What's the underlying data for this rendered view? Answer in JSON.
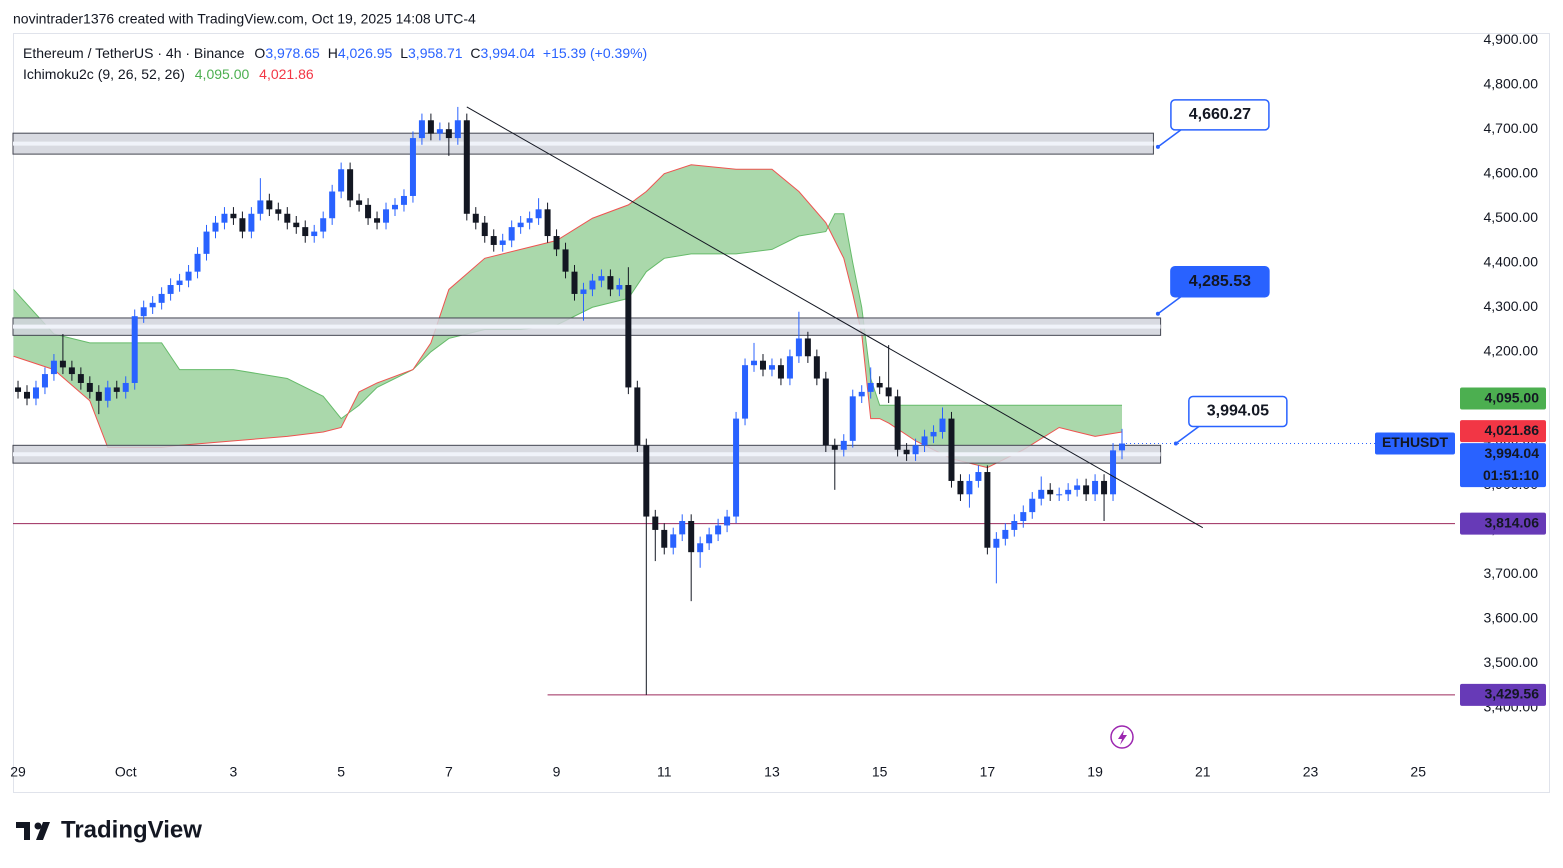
{
  "header": {
    "attribution": "novintrader1376 created with TradingView.com, Oct 19, 2025 14:08 UTC-4",
    "symbol": "Ethereum / TetherUS · 4h · Binance",
    "ohlc": [
      {
        "key": "O",
        "value": "3,978.65"
      },
      {
        "key": "H",
        "value": "4,026.95"
      },
      {
        "key": "L",
        "value": "3,958.71"
      },
      {
        "key": "C",
        "value": "3,994.04"
      }
    ],
    "change": "+15.39 (+0.39%)",
    "indicator": {
      "name": "Ichimoku2c (9, 26, 52, 26)",
      "values": [
        "4,095.00",
        "4,021.86"
      ]
    }
  },
  "footer": {
    "brand": "TradingView"
  },
  "chart_data": {
    "type": "candlestick",
    "up_color": "#2962ff",
    "down_color": "#131722",
    "grid": false,
    "xlim": [
      -0.56,
      160.1
    ],
    "xticks": [
      {
        "value": 0,
        "label": "29"
      },
      {
        "value": 12,
        "label": "Oct"
      },
      {
        "value": 24,
        "label": "3"
      },
      {
        "value": 36,
        "label": "5"
      },
      {
        "value": 48,
        "label": "7"
      },
      {
        "value": 60,
        "label": "9"
      },
      {
        "value": 72,
        "label": "11"
      },
      {
        "value": 84,
        "label": "13"
      },
      {
        "value": 96,
        "label": "15"
      },
      {
        "value": 108,
        "label": "17"
      },
      {
        "value": 120,
        "label": "19"
      },
      {
        "value": 132,
        "label": "21"
      },
      {
        "value": 144,
        "label": "23"
      },
      {
        "value": 156,
        "label": "25"
      }
    ],
    "ylim": [
      3290,
      4916
    ],
    "yticks": [
      {
        "value": 4900,
        "label": "4,900.00"
      },
      {
        "value": 4800,
        "label": "4,800.00"
      },
      {
        "value": 4700,
        "label": "4,700.00"
      },
      {
        "value": 4600,
        "label": "4,600.00"
      },
      {
        "value": 4500,
        "label": "4,500.00"
      },
      {
        "value": 4400,
        "label": "4,400.00"
      },
      {
        "value": 4300,
        "label": "4,300.00"
      },
      {
        "value": 4200,
        "label": "4,200.00"
      },
      {
        "value": 4100,
        "label": "4,100.00"
      },
      {
        "value": 4000,
        "label": "4,000.00"
      },
      {
        "value": 3900,
        "label": "3,900.00"
      },
      {
        "value": 3800,
        "label": "3,800.00"
      },
      {
        "value": 3700,
        "label": "3,700.00"
      },
      {
        "value": 3600,
        "label": "3,600.00"
      },
      {
        "value": 3500,
        "label": "3,500.00"
      },
      {
        "value": 3400,
        "label": "3,400.00"
      }
    ],
    "open": [
      4120,
      4110,
      4095,
      4120,
      4150,
      4180,
      4165,
      4150,
      4130,
      4110,
      4090,
      4120,
      4110,
      4130,
      4280,
      4300,
      4310,
      4330,
      4350,
      4360,
      4380,
      4420,
      4470,
      4490,
      4510,
      4500,
      4470,
      4510,
      4540,
      4520,
      4510,
      4490,
      4480,
      4460,
      4470,
      4500,
      4560,
      4610,
      4540,
      4530,
      4500,
      4490,
      4520,
      4530,
      4550,
      4680,
      4720,
      4690,
      4700,
      4680,
      4720,
      4510,
      4490,
      4460,
      4440,
      4450,
      4480,
      4490,
      4500,
      4520,
      4460,
      4430,
      4380,
      4330,
      4340,
      4360,
      4370,
      4340,
      4350,
      4120,
      3990,
      3830,
      3800,
      3760,
      3790,
      3820,
      3750,
      3770,
      3790,
      3810,
      3830,
      4050,
      4170,
      4180,
      4160,
      4170,
      4140,
      4190,
      4230,
      4190,
      4140,
      3990,
      3980,
      4000,
      4100,
      4110,
      4130,
      4120,
      4100,
      3980,
      3970,
      3990,
      4010,
      4020,
      4050,
      3910,
      3880,
      3910,
      3930,
      3760,
      3780,
      3800,
      3820,
      3840,
      3870,
      3890,
      3880,
      3880,
      3890,
      3900,
      3880,
      3910,
      3880,
      3978.65
    ],
    "high": [
      4135,
      4125,
      4135,
      4165,
      4195,
      4240,
      4180,
      4165,
      4145,
      4125,
      4135,
      4135,
      4145,
      4295,
      4315,
      4325,
      4345,
      4365,
      4375,
      4395,
      4435,
      4485,
      4505,
      4525,
      4525,
      4515,
      4525,
      4590,
      4555,
      4535,
      4525,
      4505,
      4495,
      4485,
      4515,
      4575,
      4625,
      4625,
      4555,
      4545,
      4515,
      4535,
      4545,
      4565,
      4695,
      4735,
      4735,
      4715,
      4715,
      4750,
      4735,
      4525,
      4505,
      4475,
      4465,
      4495,
      4505,
      4515,
      4545,
      4535,
      4475,
      4445,
      4395,
      4355,
      4375,
      4385,
      4385,
      4365,
      4390,
      4135,
      4005,
      3845,
      3815,
      3805,
      3835,
      3835,
      3785,
      3805,
      3825,
      3845,
      4065,
      4185,
      4220,
      4195,
      4185,
      4185,
      4205,
      4290,
      4245,
      4205,
      4155,
      4005,
      4015,
      4115,
      4125,
      4165,
      4145,
      4215,
      4115,
      3995,
      4005,
      4025,
      4035,
      4075,
      4065,
      3925,
      3925,
      3945,
      3945,
      3795,
      3815,
      3835,
      3855,
      3885,
      3920,
      3905,
      3895,
      3905,
      3915,
      3915,
      3925,
      3925,
      3995,
      4026.95
    ],
    "low": [
      4095,
      4080,
      4080,
      4105,
      4135,
      4150,
      4135,
      4115,
      4095,
      4060,
      4075,
      4095,
      4095,
      4115,
      4265,
      4285,
      4295,
      4315,
      4335,
      4345,
      4365,
      4405,
      4455,
      4475,
      4485,
      4455,
      4455,
      4495,
      4505,
      4495,
      4475,
      4465,
      4445,
      4445,
      4455,
      4485,
      4545,
      4525,
      4515,
      4485,
      4475,
      4475,
      4505,
      4515,
      4535,
      4665,
      4675,
      4675,
      4640,
      4665,
      4495,
      4475,
      4445,
      4425,
      4425,
      4435,
      4465,
      4475,
      4485,
      4445,
      4415,
      4365,
      4315,
      4270,
      4325,
      4345,
      4325,
      4325,
      4105,
      3975,
      3429.56,
      3730,
      3745,
      3745,
      3775,
      3640,
      3715,
      3755,
      3775,
      3795,
      3815,
      4035,
      4155,
      4145,
      4145,
      4125,
      4125,
      4175,
      4175,
      4125,
      3975,
      3890,
      3965,
      3985,
      4085,
      4095,
      4105,
      4085,
      3965,
      3955,
      3955,
      3975,
      3995,
      4005,
      3895,
      3865,
      3850,
      3895,
      3745,
      3680,
      3765,
      3785,
      3805,
      3825,
      3855,
      3865,
      3865,
      3865,
      3875,
      3865,
      3865,
      3820,
      3865,
      3958.71
    ],
    "close": [
      4110,
      4095,
      4120,
      4150,
      4180,
      4165,
      4150,
      4130,
      4110,
      4090,
      4120,
      4110,
      4130,
      4280,
      4300,
      4310,
      4330,
      4350,
      4360,
      4380,
      4420,
      4470,
      4490,
      4510,
      4500,
      4470,
      4510,
      4540,
      4520,
      4510,
      4490,
      4480,
      4460,
      4470,
      4500,
      4560,
      4610,
      4540,
      4530,
      4500,
      4490,
      4520,
      4530,
      4550,
      4680,
      4720,
      4690,
      4700,
      4680,
      4720,
      4510,
      4490,
      4460,
      4440,
      4450,
      4480,
      4490,
      4500,
      4520,
      4460,
      4430,
      4380,
      4330,
      4340,
      4360,
      4370,
      4340,
      4350,
      4120,
      3990,
      3830,
      3800,
      3760,
      3790,
      3820,
      3750,
      3770,
      3790,
      3810,
      3830,
      4050,
      4170,
      4180,
      4160,
      4170,
      4140,
      4190,
      4230,
      4190,
      4140,
      3990,
      3980,
      4000,
      4100,
      4110,
      4130,
      4120,
      4100,
      3980,
      3970,
      3990,
      4010,
      4020,
      4050,
      3910,
      3880,
      3910,
      3930,
      3760,
      3780,
      3800,
      3820,
      3840,
      3870,
      3890,
      3880,
      3880,
      3890,
      3900,
      3880,
      3910,
      3880,
      3978.65,
      3994.04
    ],
    "cloud": {
      "fill": "#a5d6a7",
      "span_a_color": "#66bb6a",
      "span_b_color": "#ef5350",
      "x": [
        -0.5,
        4,
        8,
        10,
        16,
        18,
        24,
        30,
        34,
        36,
        38,
        40,
        44,
        46,
        48,
        52,
        56,
        60,
        64,
        68,
        70,
        72,
        75,
        80,
        84,
        87,
        90,
        91,
        92,
        93,
        94,
        95,
        96,
        97,
        100,
        104,
        108,
        112,
        116,
        118,
        120,
        123
      ],
      "span_a": [
        4340,
        4240,
        4220,
        4220,
        4220,
        4160,
        4160,
        4140,
        4100,
        4050,
        4080,
        4120,
        4160,
        4200,
        4230,
        4250,
        4250,
        4260,
        4300,
        4320,
        4380,
        4410,
        4420,
        4420,
        4430,
        4460,
        4470,
        4510,
        4510,
        4400,
        4300,
        4140,
        4080,
        4080,
        4080,
        4080,
        4080,
        4080,
        4080,
        4080,
        4080,
        4080
      ],
      "span_b": [
        4190,
        4160,
        4090,
        3985,
        3985,
        3990,
        4000,
        4010,
        4020,
        4030,
        4110,
        4130,
        4160,
        4220,
        4340,
        4410,
        4430,
        4450,
        4500,
        4530,
        4560,
        4600,
        4620,
        4610,
        4610,
        4560,
        4490,
        4450,
        4410,
        4330,
        4240,
        4050,
        4050,
        4040,
        4000,
        3960,
        3940,
        3980,
        4030,
        4020,
        4010,
        4020
      ]
    },
    "zones": [
      {
        "top": 4691,
        "bottom": 4644,
        "end": 126.5
      },
      {
        "top": 4276,
        "bottom": 4237,
        "end": 127.3
      },
      {
        "top": 3990,
        "bottom": 3950,
        "end": 127.3
      }
    ],
    "callouts": [
      {
        "value": 4660.27,
        "label": "4,660.27",
        "x": 127,
        "filled": false
      },
      {
        "value": 4285.53,
        "label": "4,285.53",
        "x": 127,
        "filled": true
      },
      {
        "value": 3994.05,
        "label": "3,994.05",
        "x": 129,
        "filled": false
      }
    ],
    "trendline": {
      "x": [
        50,
        132
      ],
      "y": [
        4750,
        3805
      ],
      "color": "#131722"
    },
    "levels": [
      {
        "value": 3814.06,
        "color": "#9c2a5c"
      },
      {
        "value": 3429.56,
        "from": 59,
        "color": "#9c2a5c"
      }
    ],
    "symbol_label": "ETHUSDT",
    "price_labels": [
      {
        "value": 4095.0,
        "label": "4,095.00",
        "color": "#4caf50"
      },
      {
        "value": 4021.86,
        "label": "4,021.86",
        "color": "#f23645"
      },
      {
        "value": 3994.04,
        "label": "3,994.04",
        "color": "#2962ff",
        "countdown": "01:51:10"
      },
      {
        "value": 3814.06,
        "label": "3,814.06",
        "color": "#673ab7"
      },
      {
        "value": 3429.56,
        "label": "3,429.56",
        "color": "#673ab7"
      }
    ]
  }
}
